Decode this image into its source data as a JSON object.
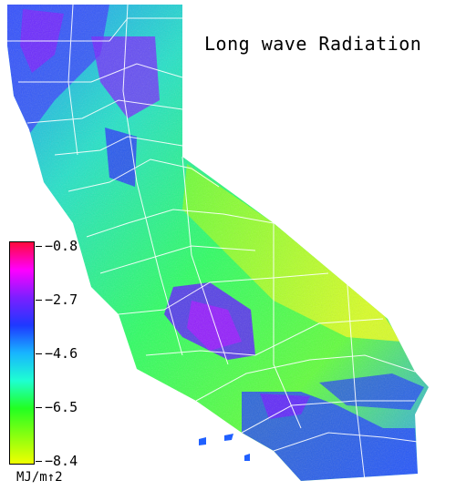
{
  "title": "Long wave Radiation",
  "legend": {
    "labels": [
      "−0.8",
      "−2.7",
      "−4.6",
      "−6.5",
      "−8.4"
    ],
    "unit": "MJ/m↑2",
    "colors": [
      "#ff0a3c",
      "#ff00ff",
      "#7b1fff",
      "#1e38ff",
      "#18b4ff",
      "#1effd2",
      "#22ff22",
      "#8aff10",
      "#f0ff00"
    ]
  },
  "map": {
    "region": "California",
    "palette": {
      "low_magnitude": "#7b1fff",
      "mid_magnitude": "#22ff66",
      "high_magnitude": "#e8ff20",
      "county_lines": "#ffffff"
    }
  }
}
